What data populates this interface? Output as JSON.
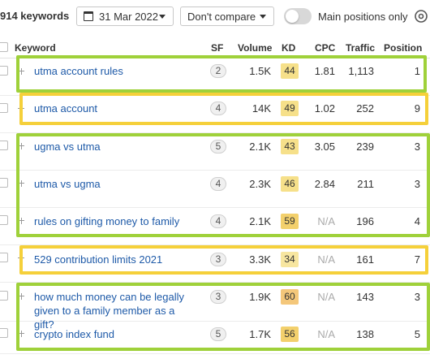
{
  "header": {
    "keywords_count": "914 keywords",
    "date_label": "31 Mar 2022",
    "compare_label": "Don't compare",
    "toggle_label": "Main positions only",
    "toggle_on": false
  },
  "columns": {
    "keyword": "Keyword",
    "sf": "SF",
    "volume": "Volume",
    "kd": "KD",
    "cpc": "CPC",
    "traffic": "Traffic",
    "position": "Position"
  },
  "rows": [
    {
      "keyword": "utma account rules",
      "sf": "2",
      "volume": "1.5K",
      "kd": "44",
      "kd_color": "#f6e08a",
      "cpc": "1.81",
      "traffic": "1,113",
      "position": "1"
    },
    {
      "keyword": "utma account",
      "sf": "4",
      "volume": "14K",
      "kd": "49",
      "kd_color": "#f6e08a",
      "cpc": "1.02",
      "traffic": "252",
      "position": "9"
    },
    {
      "keyword": "ugma vs utma",
      "sf": "5",
      "volume": "2.1K",
      "kd": "43",
      "kd_color": "#f6e08a",
      "cpc": "3.05",
      "traffic": "239",
      "position": "3"
    },
    {
      "keyword": "utma vs ugma",
      "sf": "4",
      "volume": "2.3K",
      "kd": "46",
      "kd_color": "#f6e08a",
      "cpc": "2.84",
      "traffic": "211",
      "position": "3"
    },
    {
      "keyword": "rules on gifting money to family",
      "sf": "4",
      "volume": "2.1K",
      "kd": "59",
      "kd_color": "#f3d06c",
      "cpc": "N/A",
      "traffic": "196",
      "position": "4"
    },
    {
      "keyword": "529 contribution limits 2021",
      "sf": "3",
      "volume": "3.3K",
      "kd": "34",
      "kd_color": "#f7e6a0",
      "cpc": "N/A",
      "traffic": "161",
      "position": "7"
    },
    {
      "keyword": "how much money can be legally given to a family member as a gift?",
      "sf": "3",
      "volume": "1.9K",
      "kd": "60",
      "kd_color": "#f4c77a",
      "cpc": "N/A",
      "traffic": "143",
      "position": "3"
    },
    {
      "keyword": "crypto index fund",
      "sf": "5",
      "volume": "1.7K",
      "kd": "56",
      "kd_color": "#f3d06c",
      "cpc": "N/A",
      "traffic": "138",
      "position": "5"
    }
  ],
  "highlight_colors": {
    "green": "#9fd13a",
    "yellow": "#f5d03a"
  }
}
